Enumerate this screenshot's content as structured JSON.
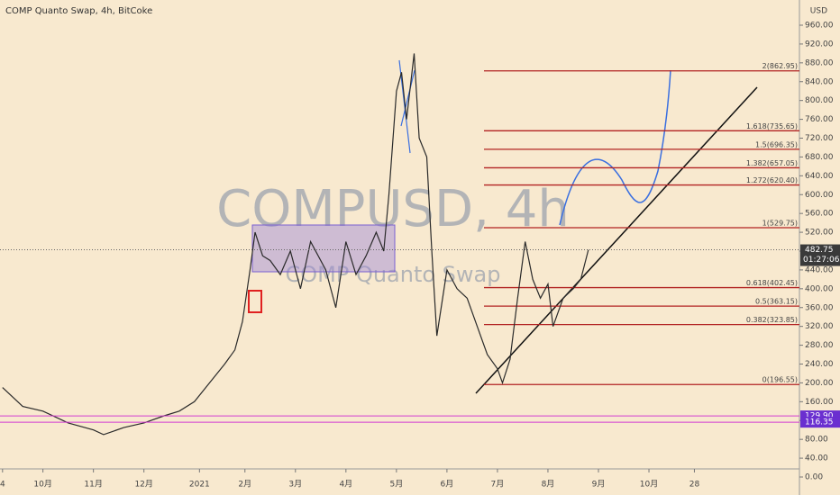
{
  "chart_data": {
    "type": "line",
    "title": "COMP Quanto Swap, 4h, BitCoke",
    "watermark": "COMPUSD, 4h",
    "watermark_subtitle": "COMP Quanto Swap",
    "currency": "USD",
    "series": [
      {
        "name": "COMPUSD",
        "color": "#2a2a2a",
        "x": [
          0.2,
          0.6,
          1.0,
          1.5,
          2.0,
          2.2,
          2.6,
          3.0,
          3.4,
          3.7,
          4.0,
          4.3,
          4.6,
          4.8,
          4.95,
          5.1,
          5.2,
          5.35,
          5.5,
          5.7,
          5.9,
          6.1,
          6.3,
          6.6,
          6.8,
          7.0,
          7.2,
          7.4,
          7.6,
          7.75,
          7.85,
          8.0,
          8.1,
          8.2,
          8.35,
          8.45,
          8.6,
          8.7,
          8.8,
          9.0,
          9.2,
          9.4,
          9.6,
          9.8,
          10.0,
          10.1,
          10.25,
          10.4,
          10.55,
          10.7,
          10.85,
          11.0,
          11.1,
          11.3,
          11.5,
          11.65,
          11.8
        ],
        "values": [
          190,
          150,
          140,
          115,
          100,
          90,
          105,
          115,
          130,
          140,
          160,
          200,
          240,
          270,
          330,
          440,
          520,
          470,
          460,
          430,
          480,
          400,
          500,
          440,
          360,
          500,
          430,
          470,
          520,
          480,
          600,
          820,
          860,
          760,
          900,
          720,
          680,
          480,
          300,
          440,
          400,
          380,
          320,
          260,
          230,
          200,
          250,
          380,
          500,
          420,
          380,
          410,
          320,
          380,
          400,
          420,
          482.75
        ]
      }
    ],
    "xlim": [
      0.15,
      15.98
    ],
    "xticks": [
      {
        "value": 0.2,
        "label": "4"
      },
      {
        "value": 1,
        "label": "10月"
      },
      {
        "value": 2,
        "label": "11月"
      },
      {
        "value": 3,
        "label": "12月"
      },
      {
        "value": 4.1,
        "label": "2021"
      },
      {
        "value": 5,
        "label": "2月"
      },
      {
        "value": 6,
        "label": "3月"
      },
      {
        "value": 7,
        "label": "4月"
      },
      {
        "value": 8,
        "label": "5月"
      },
      {
        "value": 9,
        "label": "6月"
      },
      {
        "value": 10,
        "label": "7月"
      },
      {
        "value": 11,
        "label": "8月"
      },
      {
        "value": 12,
        "label": "9月"
      },
      {
        "value": 13,
        "label": "10月"
      },
      {
        "value": 13.9,
        "label": "28"
      }
    ],
    "ylim": [
      0,
      960
    ],
    "yticks": [
      {
        "value": 0,
        "label": "0.00"
      },
      {
        "value": 40,
        "label": "40.00"
      },
      {
        "value": 80,
        "label": "80.00"
      },
      {
        "value": 120,
        "label": "120.00"
      },
      {
        "value": 160,
        "label": "160.00"
      },
      {
        "value": 200,
        "label": "200.00"
      },
      {
        "value": 240,
        "label": "240.00"
      },
      {
        "value": 280,
        "label": "280.00"
      },
      {
        "value": 320,
        "label": "320.00"
      },
      {
        "value": 360,
        "label": "360.00"
      },
      {
        "value": 400,
        "label": "400.00"
      },
      {
        "value": 440,
        "label": "440.00"
      },
      {
        "value": 480,
        "label": "480.00"
      },
      {
        "value": 520,
        "label": "520.00"
      },
      {
        "value": 560,
        "label": "560.00"
      },
      {
        "value": 600,
        "label": "600.00"
      },
      {
        "value": 640,
        "label": "640.00"
      },
      {
        "value": 680,
        "label": "680.00"
      },
      {
        "value": 720,
        "label": "720.00"
      },
      {
        "value": 760,
        "label": "760.00"
      },
      {
        "value": 800,
        "label": "800.00"
      },
      {
        "value": 840,
        "label": "840.00"
      },
      {
        "value": 880,
        "label": "880.00"
      },
      {
        "value": 920,
        "label": "920.00"
      },
      {
        "value": 960,
        "label": "960.00"
      }
    ],
    "fib_levels": {
      "color": "#b22222",
      "values": [
        862.95,
        735.65,
        696.35,
        657.05,
        620.4,
        529.75,
        402.45,
        363.15,
        323.85,
        196.55
      ],
      "value_labels": [
        "2(862.95)",
        "1.618(735.65)",
        "1.5(696.35)",
        "1.382(657.05)",
        "1.272(620.40)",
        "1(529.75)",
        "0.618(402.45)",
        "0.5(363.15)",
        "0.382(323.85)",
        "0(196.55)"
      ]
    },
    "price_tags": {
      "values": [
        482.75,
        129.9,
        116.35
      ],
      "value_labels": [
        "482.75",
        "129.90",
        "116.35"
      ],
      "countdown": "01:27:06"
    }
  }
}
